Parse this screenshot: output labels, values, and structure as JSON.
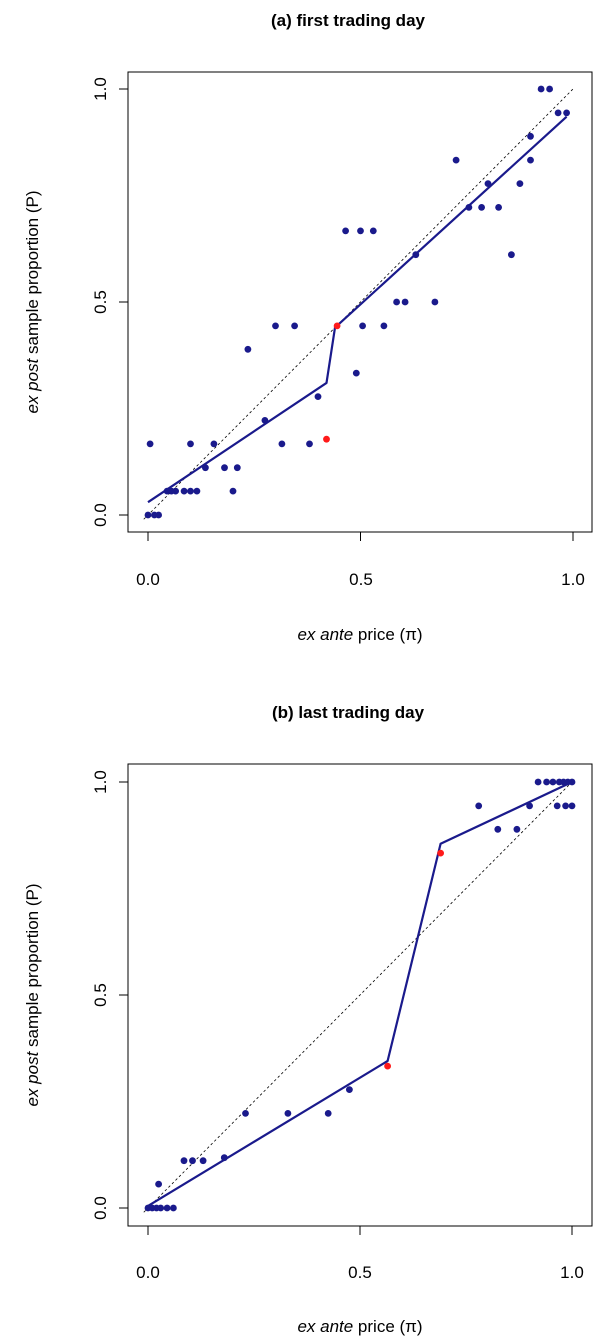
{
  "colors": {
    "point": "#1a1a8c",
    "highlight": "#ff1a1a",
    "fit_line": "#1a1a8c",
    "diagonal": "#000000"
  },
  "chart_data": [
    {
      "type": "scatter",
      "title": "(a) first trading day",
      "xlabel_italic": "ex ante",
      "xlabel_rest": " price (π)",
      "ylabel_italic": "ex post",
      "ylabel_rest": " sample proportion (P)",
      "xlim": [
        0,
        1
      ],
      "ylim": [
        0,
        1
      ],
      "xticks": [
        "0.0",
        "0.5",
        "1.0"
      ],
      "yticks": [
        "0.0",
        "0.5",
        "1.0"
      ],
      "reference_line": "y = x (dotted)",
      "points": [
        [
          0.0,
          0.0
        ],
        [
          0.015,
          0.0
        ],
        [
          0.025,
          0.0
        ],
        [
          0.005,
          0.167
        ],
        [
          0.045,
          0.056
        ],
        [
          0.055,
          0.056
        ],
        [
          0.065,
          0.056
        ],
        [
          0.085,
          0.056
        ],
        [
          0.1,
          0.056
        ],
        [
          0.115,
          0.056
        ],
        [
          0.1,
          0.167
        ],
        [
          0.135,
          0.111
        ],
        [
          0.155,
          0.167
        ],
        [
          0.18,
          0.111
        ],
        [
          0.2,
          0.056
        ],
        [
          0.21,
          0.111
        ],
        [
          0.235,
          0.389
        ],
        [
          0.275,
          0.222
        ],
        [
          0.3,
          0.444
        ],
        [
          0.315,
          0.167
        ],
        [
          0.345,
          0.444
        ],
        [
          0.38,
          0.167
        ],
        [
          0.4,
          0.278
        ],
        [
          0.465,
          0.667
        ],
        [
          0.49,
          0.333
        ],
        [
          0.505,
          0.444
        ],
        [
          0.5,
          0.667
        ],
        [
          0.53,
          0.667
        ],
        [
          0.555,
          0.444
        ],
        [
          0.585,
          0.5
        ],
        [
          0.605,
          0.5
        ],
        [
          0.63,
          0.611
        ],
        [
          0.675,
          0.5
        ],
        [
          0.725,
          0.833
        ],
        [
          0.755,
          0.722
        ],
        [
          0.785,
          0.722
        ],
        [
          0.8,
          0.778
        ],
        [
          0.825,
          0.722
        ],
        [
          0.855,
          0.611
        ],
        [
          0.875,
          0.778
        ],
        [
          0.9,
          0.889
        ],
        [
          0.9,
          0.833
        ],
        [
          0.925,
          1.0
        ],
        [
          0.945,
          1.0
        ],
        [
          0.965,
          0.944
        ],
        [
          0.985,
          0.944
        ]
      ],
      "highlight_points": [
        [
          0.42,
          0.178
        ],
        [
          0.445,
          0.444
        ]
      ],
      "fit_line": [
        [
          0.0,
          0.03
        ],
        [
          0.42,
          0.31
        ],
        [
          0.44,
          0.44
        ],
        [
          0.985,
          0.935
        ]
      ]
    },
    {
      "type": "scatter",
      "title": "(b) last trading day",
      "xlabel_italic": "ex ante",
      "xlabel_rest": " price (π)",
      "ylabel_italic": "ex post",
      "ylabel_rest": " sample proportion (P)",
      "xlim": [
        0,
        1
      ],
      "ylim": [
        0,
        1
      ],
      "xticks": [
        "0.0",
        "0.5",
        "1.0"
      ],
      "yticks": [
        "0.0",
        "0.5",
        "1.0"
      ],
      "reference_line": "y = x (dotted)",
      "points": [
        [
          0.0,
          0.0
        ],
        [
          0.01,
          0.0
        ],
        [
          0.02,
          0.0
        ],
        [
          0.03,
          0.0
        ],
        [
          0.045,
          0.0
        ],
        [
          0.06,
          0.0
        ],
        [
          0.025,
          0.056
        ],
        [
          0.085,
          0.111
        ],
        [
          0.105,
          0.111
        ],
        [
          0.13,
          0.111
        ],
        [
          0.18,
          0.118
        ],
        [
          0.23,
          0.222
        ],
        [
          0.33,
          0.222
        ],
        [
          0.425,
          0.222
        ],
        [
          0.475,
          0.278
        ],
        [
          0.78,
          0.944
        ],
        [
          0.825,
          0.889
        ],
        [
          0.87,
          0.889
        ],
        [
          0.9,
          0.944
        ],
        [
          0.92,
          1.0
        ],
        [
          0.94,
          1.0
        ],
        [
          0.955,
          1.0
        ],
        [
          0.965,
          0.944
        ],
        [
          0.97,
          1.0
        ],
        [
          0.98,
          1.0
        ],
        [
          0.985,
          0.944
        ],
        [
          0.99,
          1.0
        ],
        [
          1.0,
          1.0
        ],
        [
          1.0,
          0.944
        ]
      ],
      "highlight_points": [
        [
          0.565,
          0.333
        ],
        [
          0.69,
          0.833
        ]
      ],
      "fit_line": [
        [
          0.0,
          0.005
        ],
        [
          0.565,
          0.345
        ],
        [
          0.69,
          0.855
        ],
        [
          1.0,
          1.0
        ]
      ]
    }
  ]
}
